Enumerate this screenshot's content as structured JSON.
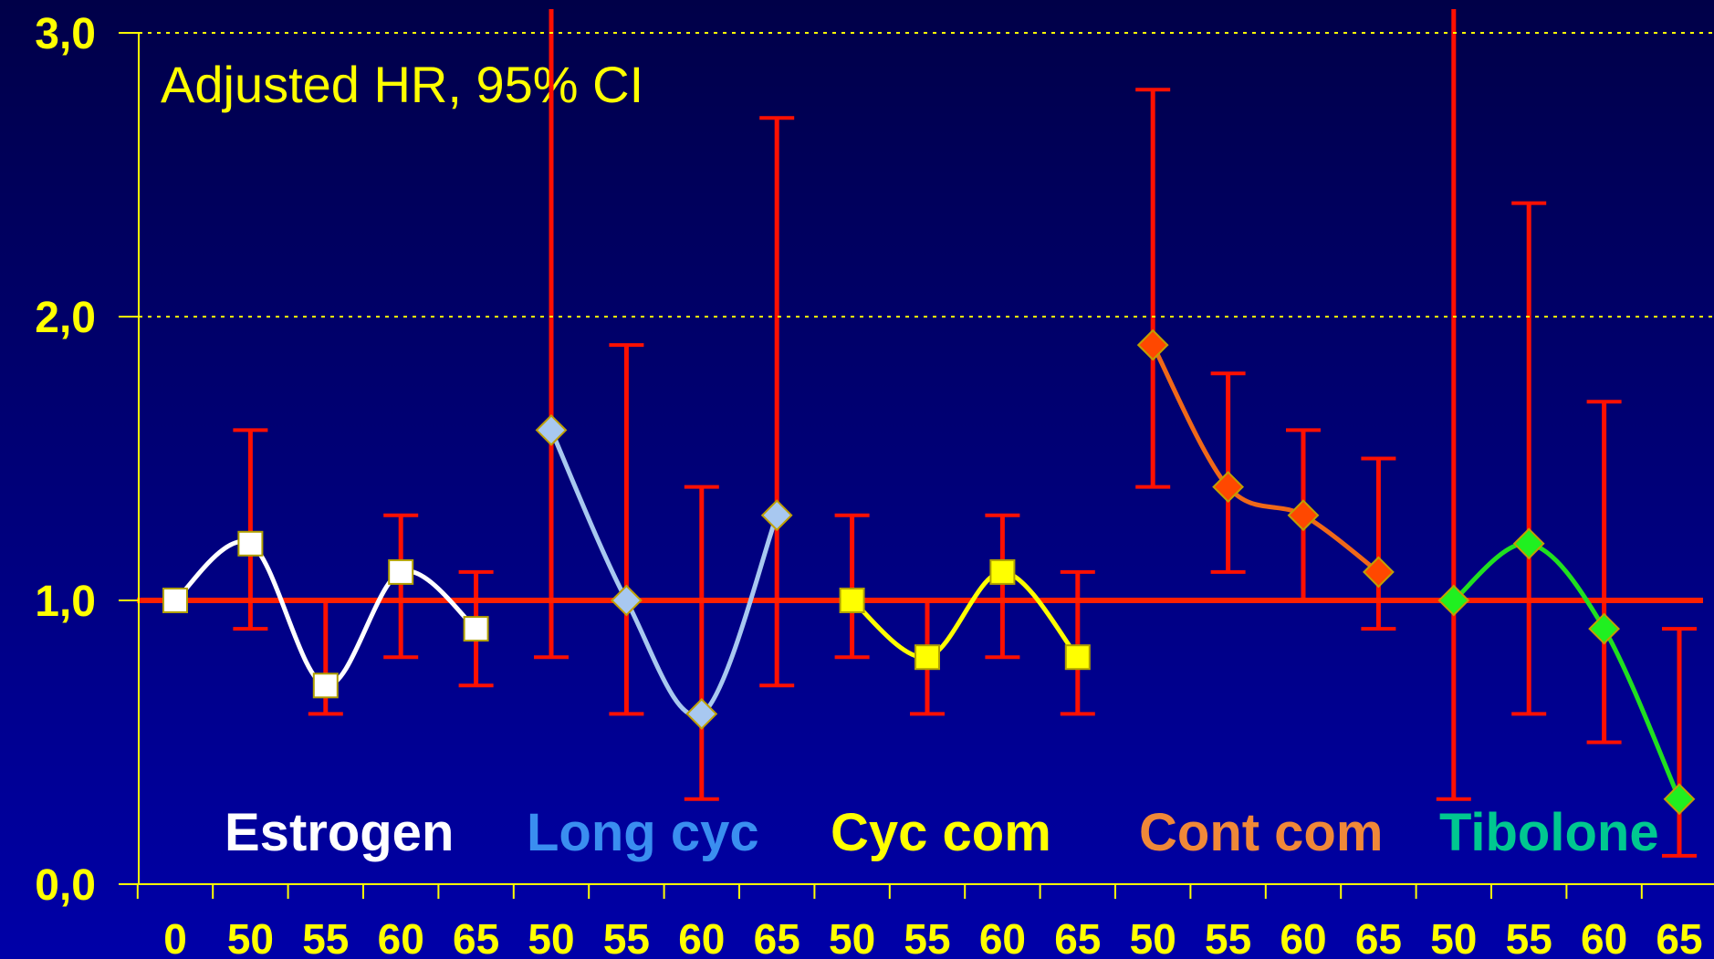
{
  "chart_data": {
    "type": "line",
    "annotation": "Adjusted HR, 95% CI",
    "categories": [
      "0",
      "50",
      "55",
      "60",
      "65",
      "50",
      "55",
      "60",
      "65",
      "50",
      "55",
      "60",
      "65",
      "50",
      "55",
      "60",
      "65",
      "50",
      "55",
      "60",
      "65"
    ],
    "ylim": [
      0,
      3
    ],
    "yticks": [
      {
        "value": 0,
        "label": "0,0"
      },
      {
        "value": 1,
        "label": "1,0"
      },
      {
        "value": 2,
        "label": "2,0"
      },
      {
        "value": 3,
        "label": "3,0"
      }
    ],
    "grid": true,
    "reference_line": 1,
    "reference_color": "#ff2000",
    "grid_color": "#ffff00",
    "axis_color": "#ffff00",
    "error_color": "#ff1000",
    "series": [
      {
        "name": "Estrogen",
        "label_color": "#ffffff",
        "color": "#ffffff",
        "marker": "square",
        "marker_color": "#ffffff",
        "values": [
          1.0,
          1.2,
          0.7,
          1.1,
          0.9,
          null,
          null,
          null,
          null,
          null,
          null,
          null,
          null,
          null,
          null,
          null,
          null,
          null,
          null,
          null,
          null
        ],
        "ci_low": [
          null,
          0.9,
          0.6,
          0.8,
          0.7,
          null,
          null,
          null,
          null,
          null,
          null,
          null,
          null,
          null,
          null,
          null,
          null,
          null,
          null,
          null,
          null
        ],
        "ci_high": [
          null,
          1.6,
          1.0,
          1.3,
          1.1,
          null,
          null,
          null,
          null,
          null,
          null,
          null,
          null,
          null,
          null,
          null,
          null,
          null,
          null,
          null,
          null
        ]
      },
      {
        "name": "Long cyc",
        "label_color": "#3a8ef0",
        "color": "#a8c8f0",
        "marker": "diamond",
        "marker_color": "#a8c8f0",
        "values": [
          null,
          null,
          null,
          null,
          null,
          1.6,
          1.0,
          0.6,
          1.3,
          null,
          null,
          null,
          null,
          null,
          null,
          null,
          null,
          null,
          null,
          null,
          null
        ],
        "ci_low": [
          null,
          null,
          null,
          null,
          null,
          0.8,
          0.6,
          0.3,
          0.7,
          null,
          null,
          null,
          null,
          null,
          null,
          null,
          null,
          null,
          null,
          null,
          null
        ],
        "ci_high": [
          null,
          null,
          null,
          null,
          null,
          3.3,
          1.9,
          1.4,
          2.7,
          null,
          null,
          null,
          null,
          null,
          null,
          null,
          null,
          null,
          null,
          null,
          null
        ]
      },
      {
        "name": "Cyc com",
        "label_color": "#ffff00",
        "color": "#ffff00",
        "marker": "square",
        "marker_color": "#ffff00",
        "values": [
          null,
          null,
          null,
          null,
          null,
          null,
          null,
          null,
          null,
          1.0,
          0.8,
          1.1,
          0.8,
          null,
          null,
          null,
          null,
          null,
          null,
          null,
          null
        ],
        "ci_low": [
          null,
          null,
          null,
          null,
          null,
          null,
          null,
          null,
          null,
          0.8,
          0.6,
          0.8,
          0.6,
          null,
          null,
          null,
          null,
          null,
          null,
          null,
          null
        ],
        "ci_high": [
          null,
          null,
          null,
          null,
          null,
          null,
          null,
          null,
          null,
          1.3,
          1.0,
          1.3,
          1.1,
          null,
          null,
          null,
          null,
          null,
          null,
          null,
          null
        ]
      },
      {
        "name": "Cont com",
        "label_color": "#f08838",
        "color": "#f06818",
        "marker": "diamond",
        "marker_color": "#ff4800",
        "values": [
          null,
          null,
          null,
          null,
          null,
          null,
          null,
          null,
          null,
          null,
          null,
          null,
          null,
          1.9,
          1.4,
          1.3,
          1.1,
          null,
          null,
          null,
          null
        ],
        "ci_low": [
          null,
          null,
          null,
          null,
          null,
          null,
          null,
          null,
          null,
          null,
          null,
          null,
          null,
          1.4,
          1.1,
          1.0,
          0.9,
          null,
          null,
          null,
          null
        ],
        "ci_high": [
          null,
          null,
          null,
          null,
          null,
          null,
          null,
          null,
          null,
          null,
          null,
          null,
          null,
          2.8,
          1.8,
          1.6,
          1.5,
          null,
          null,
          null,
          null
        ]
      },
      {
        "name": "Tibolone",
        "label_color": "#00c890",
        "color": "#20e020",
        "marker": "diamond",
        "marker_color": "#20f020",
        "values": [
          null,
          null,
          null,
          null,
          null,
          null,
          null,
          null,
          null,
          null,
          null,
          null,
          null,
          null,
          null,
          null,
          null,
          1.0,
          1.2,
          0.9,
          0.3
        ],
        "ci_low": [
          null,
          null,
          null,
          null,
          null,
          null,
          null,
          null,
          null,
          null,
          null,
          null,
          null,
          null,
          null,
          null,
          null,
          0.3,
          0.6,
          0.5,
          0.1
        ],
        "ci_high": [
          null,
          null,
          null,
          null,
          null,
          null,
          null,
          null,
          null,
          null,
          null,
          null,
          null,
          null,
          null,
          null,
          null,
          3.3,
          2.4,
          1.7,
          0.9
        ]
      }
    ]
  }
}
